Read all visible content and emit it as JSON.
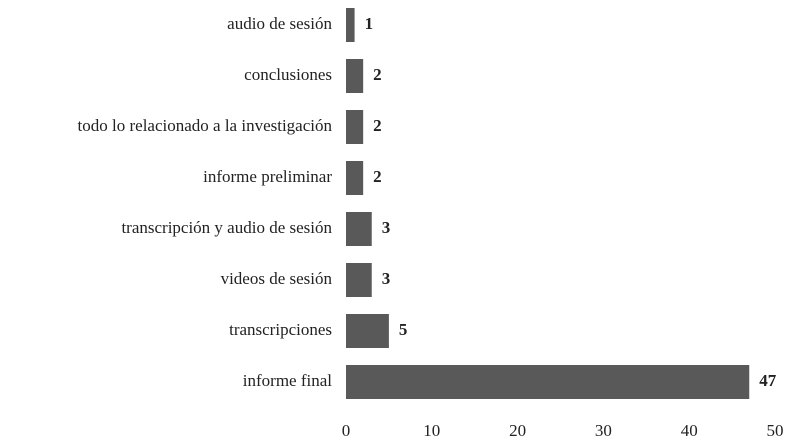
{
  "chart_data": {
    "type": "bar",
    "orientation": "horizontal",
    "categories": [
      "audio de sesión",
      "conclusiones",
      "todo lo relacionado a la investigación",
      "informe preliminar",
      "transcripción y audio de sesión",
      "videos de sesión",
      "transcripciones",
      "informe final"
    ],
    "values": [
      1,
      2,
      2,
      2,
      3,
      3,
      5,
      47
    ],
    "color": "#595959",
    "xlim": [
      0,
      50
    ],
    "xticks": [
      0,
      10,
      20,
      30,
      40,
      50
    ],
    "grid": false
  }
}
